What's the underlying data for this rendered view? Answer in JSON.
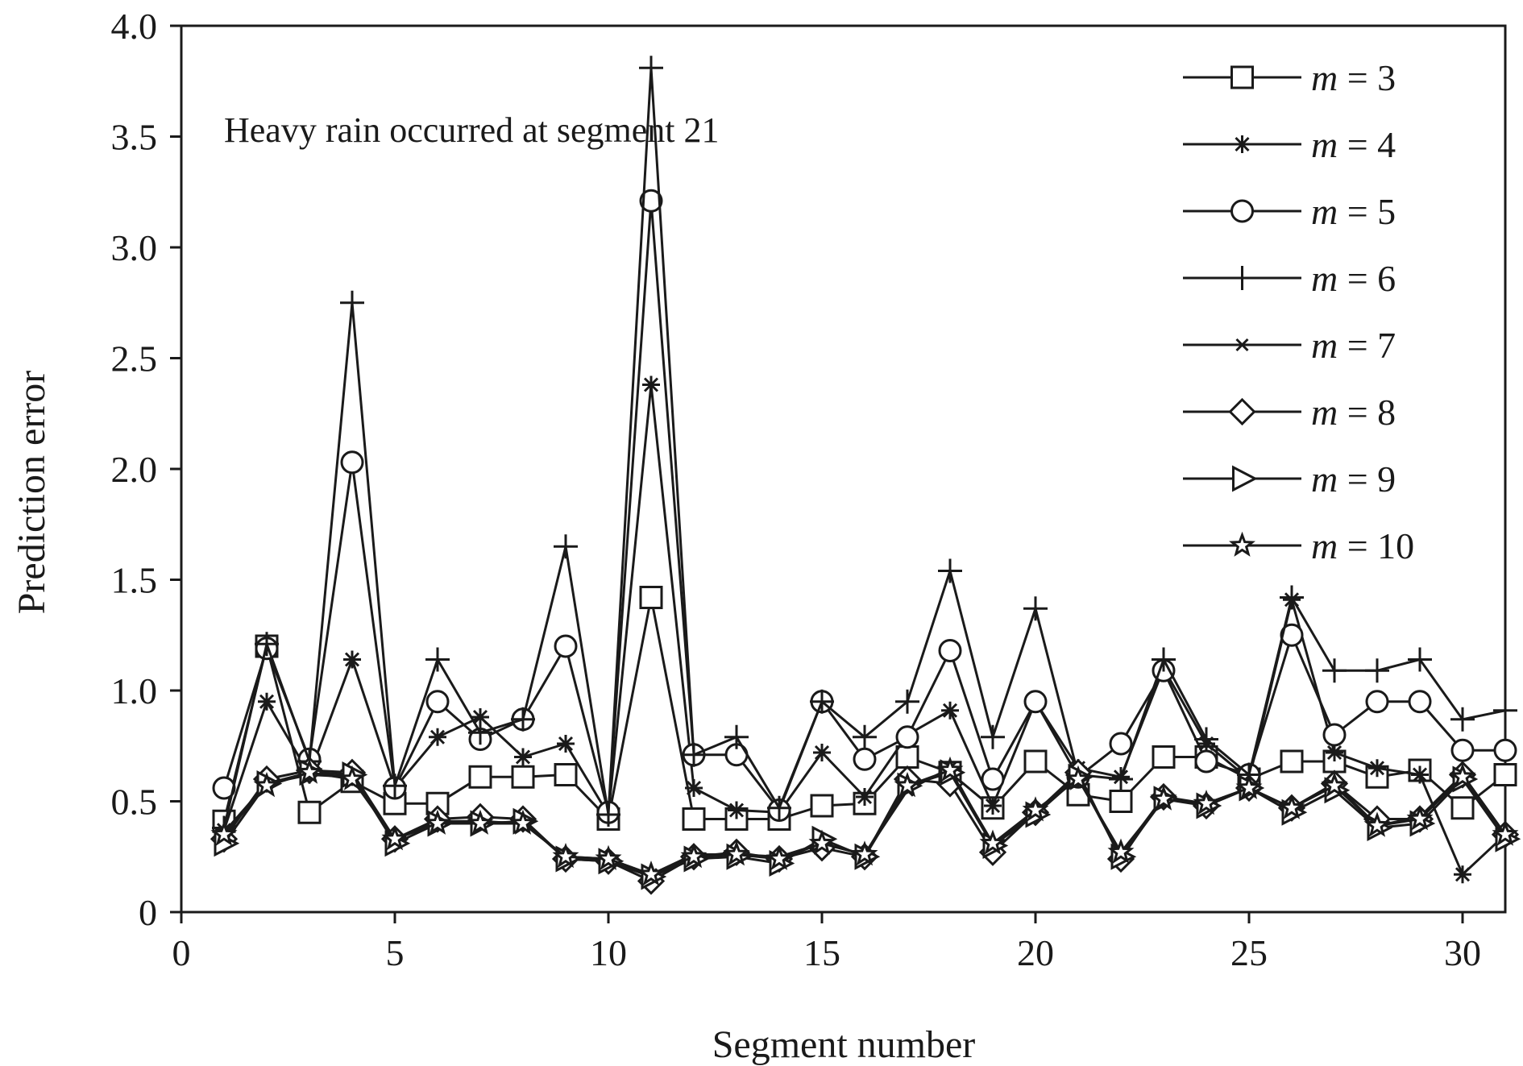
{
  "chart_data": {
    "type": "line",
    "title": "",
    "annotation": "Heavy rain occurred at segment 21",
    "xlabel": "Segment number",
    "ylabel": "Prediction error",
    "xlim": [
      0,
      31
    ],
    "ylim": [
      0,
      4.0
    ],
    "xticks": [
      0,
      5,
      10,
      15,
      20,
      25,
      30
    ],
    "xtick_labels": [
      "0",
      "5",
      "10",
      "15",
      "20",
      "25",
      "30"
    ],
    "yticks": [
      0,
      0.5,
      1.0,
      1.5,
      2.0,
      2.5,
      3.0,
      3.5,
      4.0
    ],
    "ytick_labels": [
      "0",
      "0.5",
      "1.0",
      "1.5",
      "2.0",
      "2.5",
      "3.0",
      "3.5",
      "4.0"
    ],
    "legend_position": "top-right",
    "x": [
      1,
      2,
      3,
      4,
      5,
      6,
      7,
      8,
      9,
      10,
      11,
      12,
      13,
      14,
      15,
      16,
      17,
      18,
      19,
      20,
      21,
      22,
      23,
      24,
      25,
      26,
      27,
      28,
      29,
      30,
      31
    ],
    "series": [
      {
        "name": "m = 3",
        "legend_var": "m",
        "legend_rest": " = 3",
        "marker": "square",
        "values": [
          0.41,
          1.2,
          0.45,
          0.59,
          0.49,
          0.49,
          0.61,
          0.61,
          0.62,
          0.42,
          1.42,
          0.42,
          0.42,
          0.42,
          0.48,
          0.49,
          0.7,
          0.63,
          0.47,
          0.68,
          0.53,
          0.5,
          0.7,
          0.7,
          0.6,
          0.68,
          0.68,
          0.61,
          0.64,
          0.47,
          0.62
        ]
      },
      {
        "name": "m = 4",
        "legend_var": "m",
        "legend_rest": " = 4",
        "marker": "asterisk",
        "values": [
          0.37,
          0.95,
          0.62,
          1.14,
          0.56,
          0.79,
          0.88,
          0.7,
          0.76,
          0.44,
          2.38,
          0.56,
          0.46,
          0.45,
          0.72,
          0.52,
          0.8,
          0.91,
          0.48,
          0.95,
          0.65,
          0.61,
          1.1,
          0.76,
          0.6,
          1.41,
          0.72,
          0.65,
          0.62,
          0.17,
          0.35
        ]
      },
      {
        "name": "m = 5",
        "legend_var": "m",
        "legend_rest": " = 5",
        "marker": "circle",
        "values": [
          0.56,
          1.19,
          0.69,
          2.03,
          0.56,
          0.95,
          0.78,
          0.87,
          1.2,
          0.45,
          3.21,
          0.71,
          0.71,
          0.46,
          0.95,
          0.69,
          0.79,
          1.18,
          0.6,
          0.95,
          0.61,
          0.76,
          1.09,
          0.68,
          0.62,
          1.25,
          0.8,
          0.95,
          0.95,
          0.73,
          0.73
        ]
      },
      {
        "name": "m = 6",
        "legend_var": "m",
        "legend_rest": " = 6",
        "marker": "plus",
        "values": [
          0.38,
          1.21,
          0.68,
          2.75,
          0.57,
          1.14,
          0.81,
          0.87,
          1.65,
          0.44,
          3.81,
          0.71,
          0.79,
          0.47,
          0.95,
          0.79,
          0.95,
          1.54,
          0.79,
          1.37,
          0.62,
          0.6,
          1.14,
          0.78,
          0.62,
          1.42,
          1.09,
          1.09,
          1.14,
          0.87,
          0.91
        ]
      },
      {
        "name": "m = 7",
        "legend_var": "m",
        "legend_rest": " = 7",
        "marker": "x",
        "values": [
          0.36,
          0.58,
          0.62,
          0.61,
          0.33,
          0.41,
          0.41,
          0.4,
          0.25,
          0.24,
          0.17,
          0.26,
          0.26,
          0.25,
          0.31,
          0.26,
          0.55,
          0.65,
          0.3,
          0.45,
          0.61,
          0.26,
          0.52,
          0.49,
          0.56,
          0.47,
          0.58,
          0.39,
          0.43,
          0.62,
          0.35
        ]
      },
      {
        "name": "m = 8",
        "legend_var": "m",
        "legend_rest": " = 8",
        "marker": "diamond",
        "values": [
          0.33,
          0.6,
          0.64,
          0.63,
          0.33,
          0.42,
          0.43,
          0.42,
          0.24,
          0.23,
          0.14,
          0.25,
          0.27,
          0.24,
          0.29,
          0.25,
          0.6,
          0.58,
          0.27,
          0.45,
          0.63,
          0.24,
          0.52,
          0.48,
          0.56,
          0.47,
          0.58,
          0.42,
          0.42,
          0.62,
          0.35
        ]
      },
      {
        "name": "m = 9",
        "legend_var": "m",
        "legend_rest": " = 9",
        "marker": "triangle-right",
        "values": [
          0.31,
          0.58,
          0.63,
          0.62,
          0.31,
          0.4,
          0.4,
          0.41,
          0.24,
          0.23,
          0.16,
          0.24,
          0.25,
          0.22,
          0.33,
          0.25,
          0.57,
          0.63,
          0.3,
          0.44,
          0.61,
          0.25,
          0.51,
          0.48,
          0.56,
          0.45,
          0.55,
          0.38,
          0.4,
          0.6,
          0.33
        ]
      },
      {
        "name": "m = 10",
        "legend_var": "m",
        "legend_rest": " = 10",
        "marker": "star",
        "values": [
          0.35,
          0.57,
          0.63,
          0.6,
          0.33,
          0.4,
          0.4,
          0.4,
          0.25,
          0.24,
          0.17,
          0.25,
          0.26,
          0.24,
          0.31,
          0.26,
          0.57,
          0.64,
          0.31,
          0.46,
          0.6,
          0.27,
          0.51,
          0.49,
          0.56,
          0.47,
          0.57,
          0.39,
          0.42,
          0.61,
          0.35
        ]
      }
    ]
  }
}
